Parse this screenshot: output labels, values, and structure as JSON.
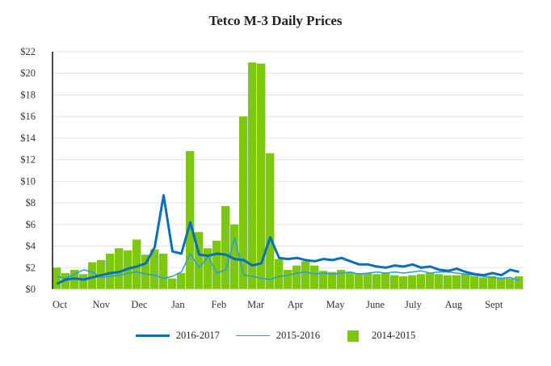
{
  "chart_data": {
    "type": "bar+line",
    "title": "Tetco M-3 Daily Prices",
    "xlabel": "",
    "ylabel": "",
    "ylim": [
      0,
      22
    ],
    "y_ticks": [
      "$0",
      "$2",
      "$4",
      "$6",
      "$8",
      "$10",
      "$12",
      "$14",
      "$16",
      "$18",
      "$20",
      "$22"
    ],
    "x_ticks": [
      "Oct",
      "Nov",
      "Dec",
      "Jan",
      "Feb",
      "Mar",
      "Apr",
      "May",
      "June",
      "July",
      "Aug",
      "Sept"
    ],
    "grid": true,
    "legend_position": "bottom",
    "x_unit": "week of gas year (Oct 1 start)",
    "series": [
      {
        "name": "2016-2017",
        "type": "line",
        "color": "#0a6ebd",
        "values": [
          0.5,
          0.9,
          1.0,
          0.9,
          1.1,
          1.3,
          1.5,
          1.6,
          1.9,
          2.1,
          2.4,
          3.9,
          8.7,
          3.5,
          3.3,
          6.2,
          3.2,
          3.1,
          3.3,
          3.2,
          2.8,
          2.7,
          2.2,
          2.4,
          4.8,
          2.9,
          2.8,
          2.9,
          2.7,
          2.6,
          2.8,
          2.7,
          2.9,
          2.6,
          2.3,
          2.3,
          2.1,
          2.0,
          2.2,
          2.1,
          2.3,
          2.0,
          2.1,
          1.8,
          1.7,
          1.9,
          1.6,
          1.4,
          1.3,
          1.5,
          1.3,
          1.8,
          1.6
        ]
      },
      {
        "name": "2015-2016",
        "type": "line",
        "color": "#2a9be0",
        "values": [
          1.2,
          1.0,
          1.4,
          1.8,
          1.6,
          1.1,
          1.2,
          1.3,
          1.5,
          1.6,
          1.4,
          1.3,
          1.0,
          1.2,
          1.6,
          3.3,
          2.0,
          3.0,
          1.5,
          1.8,
          4.8,
          1.3,
          1.2,
          1.0,
          0.9,
          1.2,
          1.3,
          1.5,
          1.6,
          1.4,
          1.5,
          1.4,
          1.5,
          1.6,
          1.4,
          1.5,
          1.6,
          1.5,
          1.6,
          1.5,
          1.6,
          1.7,
          1.5,
          1.6,
          1.6,
          1.5,
          1.4,
          1.3,
          1.2,
          1.1,
          1.0,
          1.1,
          0.8
        ]
      },
      {
        "name": "2014-2015",
        "type": "bar",
        "color": "#7dc70f",
        "values": [
          2.0,
          1.5,
          1.8,
          1.4,
          2.5,
          2.7,
          3.3,
          3.8,
          3.6,
          4.6,
          3.2,
          3.7,
          3.3,
          1.0,
          1.5,
          12.8,
          5.3,
          3.8,
          4.5,
          7.7,
          6.0,
          16.0,
          21.0,
          20.9,
          12.6,
          2.8,
          1.8,
          2.2,
          2.6,
          2.2,
          1.7,
          1.6,
          1.8,
          1.6,
          1.5,
          1.5,
          1.4,
          1.5,
          1.3,
          1.2,
          1.3,
          1.4,
          1.5,
          1.4,
          1.3,
          1.3,
          1.4,
          1.2,
          1.1,
          1.2,
          1.1,
          1.0,
          1.2
        ]
      }
    ]
  }
}
